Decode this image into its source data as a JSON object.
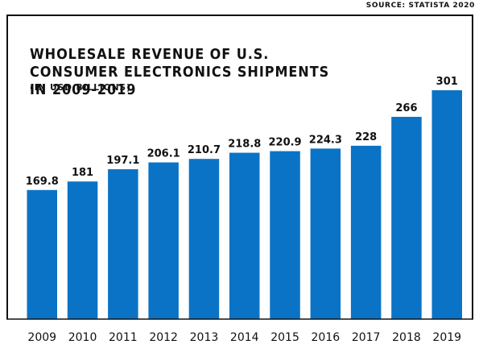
{
  "source": "SOURCE: STATISTA 2020",
  "chart_data": {
    "type": "bar",
    "title": "WHOLESALE REVENUE OF U.S. CONSUMER ELECTRONICS SHIPMENTS IN 2009-2019",
    "subtitle": "(IN USD BILLIONS)",
    "categories": [
      "2009",
      "2010",
      "2011",
      "2012",
      "2013",
      "2014",
      "2015",
      "2016",
      "2017",
      "2018",
      "2019"
    ],
    "values": [
      169.8,
      181,
      197.1,
      206.1,
      210.7,
      218.8,
      220.9,
      224.3,
      228,
      266,
      301
    ],
    "value_labels": [
      "169.8",
      "181",
      "197.1",
      "206.1",
      "210.7",
      "218.8",
      "220.9",
      "224.3",
      "228",
      "266",
      "301"
    ],
    "xlabel": "",
    "ylabel": "",
    "ylim": [
      0,
      301
    ],
    "bar_color": "#0a73c6",
    "grid": false,
    "legend": "none"
  }
}
